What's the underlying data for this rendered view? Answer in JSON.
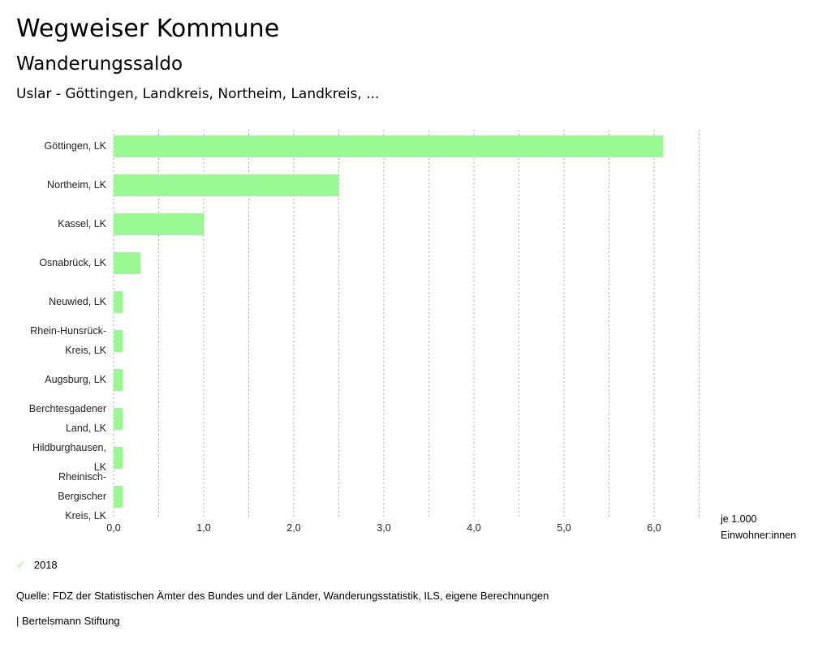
{
  "header": {
    "title": "Wegweiser Kommune",
    "subtitle": "Wanderungssaldo",
    "region": "Uslar - Göttingen, Landkreis, Northeim, Landkreis, ..."
  },
  "chart_data": {
    "type": "bar",
    "orientation": "horizontal",
    "categories": [
      [
        "Göttingen, LK"
      ],
      [
        "Northeim, LK"
      ],
      [
        "Kassel, LK"
      ],
      [
        "Osnabrück, LK"
      ],
      [
        "Neuwied, LK"
      ],
      [
        "Rhein-Hunsrück-",
        "Kreis, LK"
      ],
      [
        "Augsburg, LK"
      ],
      [
        "Berchtesgadener",
        "Land, LK"
      ],
      [
        "Hildburghausen,",
        "LK"
      ],
      [
        "Rheinisch-",
        "Bergischer",
        "Kreis, LK"
      ]
    ],
    "series": [
      {
        "name": "2018",
        "color": "#9af893",
        "values": [
          6.1,
          2.5,
          1.0,
          0.3,
          0.1,
          0.1,
          0.1,
          0.1,
          0.1,
          0.1
        ]
      }
    ],
    "xlim": [
      0,
      6.5
    ],
    "xticks": [
      "0,0",
      "1,0",
      "2,0",
      "3,0",
      "4,0",
      "5,0",
      "6,0"
    ],
    "xlabel": [
      "je 1.000",
      "Einwohner:innen"
    ],
    "grid": true,
    "legend": "bottom-left"
  },
  "legend": {
    "label": "2018"
  },
  "footer": {
    "source": "Quelle: FDZ der Statistischen Ämter des Bundes und der Länder, Wanderungsstatistik, ILS, eigene Berechnungen",
    "brand": "| Bertelsmann Stiftung"
  }
}
